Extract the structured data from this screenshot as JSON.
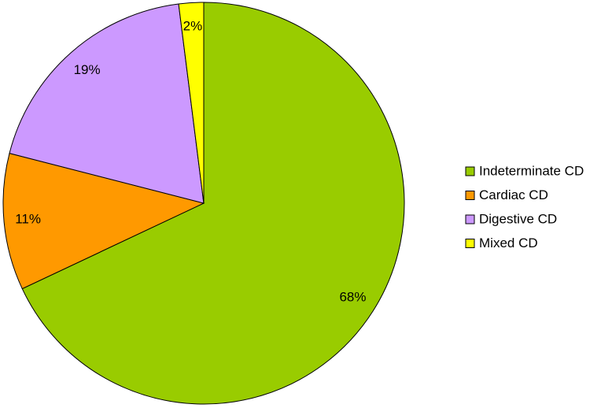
{
  "chart_data": {
    "type": "pie",
    "categories": [
      "Indeterminate CD",
      "Cardiac CD",
      "Digestive CD",
      "Mixed CD"
    ],
    "values": [
      68,
      11,
      19,
      2
    ],
    "value_labels": [
      "68%",
      "11%",
      "19%",
      "2%"
    ],
    "colors": [
      "#99cc00",
      "#ff9900",
      "#cc99ff",
      "#ffff00"
    ],
    "legend": "right"
  }
}
